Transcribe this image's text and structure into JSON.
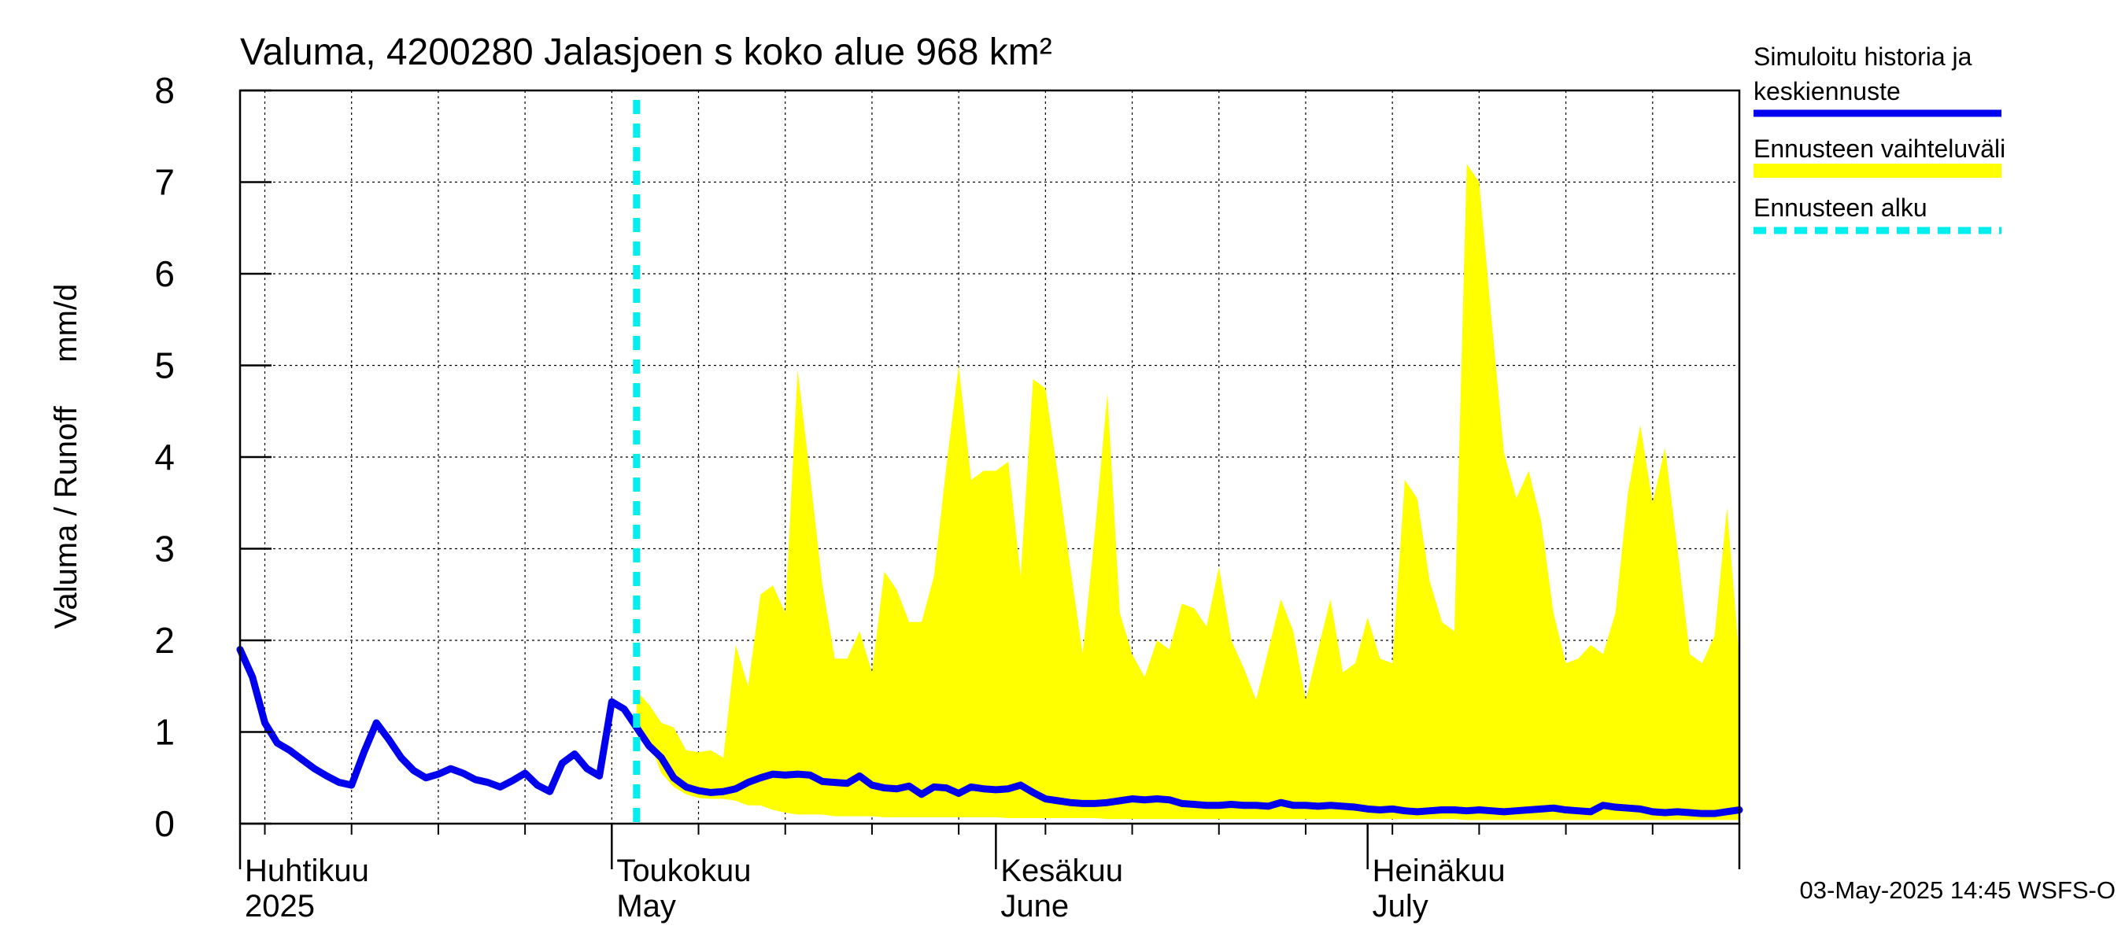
{
  "chart_data": {
    "type": "area",
    "title": "Valuma, 4200280 Jalasjoen s koko alue 968 km²",
    "ylabel": "Valuma / Runoff     mm/d",
    "ylim": [
      0,
      8
    ],
    "yticks": [
      0,
      1,
      2,
      3,
      4,
      5,
      6,
      7,
      8
    ],
    "grid": true,
    "x_axis": {
      "start": "2025-04-01",
      "end": "2025-07-31"
    },
    "month_labels": [
      {
        "date": "2025-04-01",
        "fi": "Huhtikuu",
        "en": "2025"
      },
      {
        "date": "2025-05-01",
        "fi": "Toukokuu",
        "en": "May"
      },
      {
        "date": "2025-06-01",
        "fi": "Kesäkuu",
        "en": "June"
      },
      {
        "date": "2025-07-01",
        "fi": "Heinäkuu",
        "en": "July"
      }
    ],
    "forecast_start": "2025-05-03",
    "legend": [
      {
        "label_line1": "Simuloitu historia ja",
        "label_line2": "keskiennuste",
        "color": "#0000ee",
        "style": "solid"
      },
      {
        "label_line1": "Ennusteen vaihteluväli",
        "label_line2": "",
        "color": "#ffff00",
        "style": "band"
      },
      {
        "label_line1": "Ennusteen alku",
        "label_line2": "",
        "color": "#00eeee",
        "style": "dashed"
      }
    ],
    "legend_position": "right",
    "footer": "03-May-2025 14:45 WSFS-O",
    "series": [
      {
        "name": "Simuloitu historia ja keskiennuste",
        "color": "#0000ee",
        "points": [
          [
            "2025-04-01",
            1.9
          ],
          [
            "2025-04-02",
            1.6
          ],
          [
            "2025-04-03",
            1.1
          ],
          [
            "2025-04-04",
            0.88
          ],
          [
            "2025-04-05",
            0.8
          ],
          [
            "2025-04-06",
            0.7
          ],
          [
            "2025-04-07",
            0.6
          ],
          [
            "2025-04-08",
            0.52
          ],
          [
            "2025-04-09",
            0.45
          ],
          [
            "2025-04-10",
            0.42
          ],
          [
            "2025-04-11",
            0.78
          ],
          [
            "2025-04-12",
            1.1
          ],
          [
            "2025-04-13",
            0.92
          ],
          [
            "2025-04-14",
            0.72
          ],
          [
            "2025-04-15",
            0.58
          ],
          [
            "2025-04-16",
            0.5
          ],
          [
            "2025-04-17",
            0.54
          ],
          [
            "2025-04-18",
            0.6
          ],
          [
            "2025-04-19",
            0.55
          ],
          [
            "2025-04-20",
            0.48
          ],
          [
            "2025-04-21",
            0.45
          ],
          [
            "2025-04-22",
            0.4
          ],
          [
            "2025-04-23",
            0.47
          ],
          [
            "2025-04-24",
            0.55
          ],
          [
            "2025-04-25",
            0.42
          ],
          [
            "2025-04-26",
            0.35
          ],
          [
            "2025-04-27",
            0.66
          ],
          [
            "2025-04-28",
            0.76
          ],
          [
            "2025-04-29",
            0.6
          ],
          [
            "2025-04-30",
            0.52
          ],
          [
            "2025-05-01",
            1.33
          ],
          [
            "2025-05-02",
            1.25
          ],
          [
            "2025-05-03",
            1.05
          ],
          [
            "2025-05-04",
            0.85
          ],
          [
            "2025-05-05",
            0.72
          ],
          [
            "2025-05-06",
            0.5
          ],
          [
            "2025-05-07",
            0.4
          ],
          [
            "2025-05-08",
            0.36
          ],
          [
            "2025-05-09",
            0.34
          ],
          [
            "2025-05-10",
            0.35
          ],
          [
            "2025-05-11",
            0.38
          ],
          [
            "2025-05-12",
            0.45
          ],
          [
            "2025-05-13",
            0.5
          ],
          [
            "2025-05-14",
            0.54
          ],
          [
            "2025-05-15",
            0.53
          ],
          [
            "2025-05-16",
            0.54
          ],
          [
            "2025-05-17",
            0.53
          ],
          [
            "2025-05-18",
            0.46
          ],
          [
            "2025-05-19",
            0.45
          ],
          [
            "2025-05-20",
            0.44
          ],
          [
            "2025-05-21",
            0.52
          ],
          [
            "2025-05-22",
            0.42
          ],
          [
            "2025-05-23",
            0.39
          ],
          [
            "2025-05-24",
            0.38
          ],
          [
            "2025-05-25",
            0.41
          ],
          [
            "2025-05-26",
            0.32
          ],
          [
            "2025-05-27",
            0.4
          ],
          [
            "2025-05-28",
            0.39
          ],
          [
            "2025-05-29",
            0.33
          ],
          [
            "2025-05-30",
            0.4
          ],
          [
            "2025-05-31",
            0.38
          ],
          [
            "2025-06-01",
            0.37
          ],
          [
            "2025-06-02",
            0.38
          ],
          [
            "2025-06-03",
            0.42
          ],
          [
            "2025-06-04",
            0.34
          ],
          [
            "2025-06-05",
            0.27
          ],
          [
            "2025-06-06",
            0.25
          ],
          [
            "2025-06-07",
            0.23
          ],
          [
            "2025-06-08",
            0.22
          ],
          [
            "2025-06-09",
            0.22
          ],
          [
            "2025-06-10",
            0.23
          ],
          [
            "2025-06-11",
            0.25
          ],
          [
            "2025-06-12",
            0.27
          ],
          [
            "2025-06-13",
            0.26
          ],
          [
            "2025-06-14",
            0.27
          ],
          [
            "2025-06-15",
            0.26
          ],
          [
            "2025-06-16",
            0.22
          ],
          [
            "2025-06-17",
            0.21
          ],
          [
            "2025-06-18",
            0.2
          ],
          [
            "2025-06-19",
            0.2
          ],
          [
            "2025-06-20",
            0.21
          ],
          [
            "2025-06-21",
            0.2
          ],
          [
            "2025-06-22",
            0.2
          ],
          [
            "2025-06-23",
            0.19
          ],
          [
            "2025-06-24",
            0.23
          ],
          [
            "2025-06-25",
            0.2
          ],
          [
            "2025-06-26",
            0.2
          ],
          [
            "2025-06-27",
            0.19
          ],
          [
            "2025-06-28",
            0.2
          ],
          [
            "2025-06-29",
            0.19
          ],
          [
            "2025-06-30",
            0.18
          ],
          [
            "2025-07-01",
            0.16
          ],
          [
            "2025-07-02",
            0.15
          ],
          [
            "2025-07-03",
            0.16
          ],
          [
            "2025-07-04",
            0.14
          ],
          [
            "2025-07-05",
            0.13
          ],
          [
            "2025-07-06",
            0.14
          ],
          [
            "2025-07-07",
            0.15
          ],
          [
            "2025-07-08",
            0.15
          ],
          [
            "2025-07-09",
            0.14
          ],
          [
            "2025-07-10",
            0.15
          ],
          [
            "2025-07-11",
            0.14
          ],
          [
            "2025-07-12",
            0.13
          ],
          [
            "2025-07-13",
            0.14
          ],
          [
            "2025-07-14",
            0.15
          ],
          [
            "2025-07-15",
            0.16
          ],
          [
            "2025-07-16",
            0.17
          ],
          [
            "2025-07-17",
            0.15
          ],
          [
            "2025-07-18",
            0.14
          ],
          [
            "2025-07-19",
            0.13
          ],
          [
            "2025-07-20",
            0.2
          ],
          [
            "2025-07-21",
            0.18
          ],
          [
            "2025-07-22",
            0.17
          ],
          [
            "2025-07-23",
            0.16
          ],
          [
            "2025-07-24",
            0.13
          ],
          [
            "2025-07-25",
            0.12
          ],
          [
            "2025-07-26",
            0.13
          ],
          [
            "2025-07-27",
            0.12
          ],
          [
            "2025-07-28",
            0.11
          ],
          [
            "2025-07-29",
            0.11
          ],
          [
            "2025-07-30",
            0.13
          ],
          [
            "2025-07-31",
            0.15
          ]
        ]
      },
      {
        "name": "Ennusteen vaihteluväli",
        "color": "#ffff00",
        "points": [
          [
            "2025-05-03",
            1.45,
            1.1
          ],
          [
            "2025-05-04",
            1.3,
            0.9
          ],
          [
            "2025-05-05",
            1.1,
            0.55
          ],
          [
            "2025-05-06",
            1.05,
            0.4
          ],
          [
            "2025-05-07",
            0.8,
            0.32
          ],
          [
            "2025-05-08",
            0.78,
            0.28
          ],
          [
            "2025-05-09",
            0.8,
            0.27
          ],
          [
            "2025-05-10",
            0.72,
            0.27
          ],
          [
            "2025-05-11",
            1.95,
            0.25
          ],
          [
            "2025-05-12",
            1.5,
            0.2
          ],
          [
            "2025-05-13",
            2.5,
            0.2
          ],
          [
            "2025-05-14",
            2.6,
            0.15
          ],
          [
            "2025-05-15",
            2.3,
            0.12
          ],
          [
            "2025-05-16",
            4.95,
            0.1
          ],
          [
            "2025-05-17",
            3.8,
            0.1
          ],
          [
            "2025-05-18",
            2.6,
            0.1
          ],
          [
            "2025-05-19",
            1.8,
            0.08
          ],
          [
            "2025-05-20",
            1.8,
            0.08
          ],
          [
            "2025-05-21",
            2.1,
            0.08
          ],
          [
            "2025-05-22",
            1.65,
            0.08
          ],
          [
            "2025-05-23",
            2.75,
            0.07
          ],
          [
            "2025-05-24",
            2.55,
            0.07
          ],
          [
            "2025-05-25",
            2.2,
            0.07
          ],
          [
            "2025-05-26",
            2.2,
            0.07
          ],
          [
            "2025-05-27",
            2.7,
            0.07
          ],
          [
            "2025-05-28",
            3.9,
            0.07
          ],
          [
            "2025-05-29",
            5.0,
            0.07
          ],
          [
            "2025-05-30",
            3.75,
            0.07
          ],
          [
            "2025-05-31",
            3.85,
            0.07
          ],
          [
            "2025-06-01",
            3.85,
            0.07
          ],
          [
            "2025-06-02",
            3.95,
            0.06
          ],
          [
            "2025-06-03",
            2.7,
            0.06
          ],
          [
            "2025-06-04",
            4.85,
            0.06
          ],
          [
            "2025-06-05",
            4.75,
            0.06
          ],
          [
            "2025-06-06",
            3.8,
            0.06
          ],
          [
            "2025-06-07",
            2.8,
            0.06
          ],
          [
            "2025-06-08",
            1.85,
            0.06
          ],
          [
            "2025-06-09",
            3.2,
            0.06
          ],
          [
            "2025-06-10",
            4.7,
            0.05
          ],
          [
            "2025-06-11",
            2.3,
            0.05
          ],
          [
            "2025-06-12",
            1.85,
            0.05
          ],
          [
            "2025-06-13",
            1.6,
            0.05
          ],
          [
            "2025-06-14",
            2.0,
            0.05
          ],
          [
            "2025-06-15",
            1.9,
            0.05
          ],
          [
            "2025-06-16",
            2.4,
            0.05
          ],
          [
            "2025-06-17",
            2.35,
            0.05
          ],
          [
            "2025-06-18",
            2.15,
            0.05
          ],
          [
            "2025-06-19",
            2.8,
            0.05
          ],
          [
            "2025-06-20",
            2.0,
            0.05
          ],
          [
            "2025-06-21",
            1.7,
            0.05
          ],
          [
            "2025-06-22",
            1.35,
            0.05
          ],
          [
            "2025-06-23",
            1.9,
            0.05
          ],
          [
            "2025-06-24",
            2.45,
            0.05
          ],
          [
            "2025-06-25",
            2.1,
            0.05
          ],
          [
            "2025-06-26",
            1.35,
            0.05
          ],
          [
            "2025-06-27",
            1.9,
            0.05
          ],
          [
            "2025-06-28",
            2.45,
            0.05
          ],
          [
            "2025-06-29",
            1.65,
            0.05
          ],
          [
            "2025-06-30",
            1.75,
            0.05
          ],
          [
            "2025-07-01",
            2.25,
            0.05
          ],
          [
            "2025-07-02",
            1.8,
            0.05
          ],
          [
            "2025-07-03",
            1.75,
            0.05
          ],
          [
            "2025-07-04",
            3.75,
            0.05
          ],
          [
            "2025-07-05",
            3.55,
            0.05
          ],
          [
            "2025-07-06",
            2.65,
            0.05
          ],
          [
            "2025-07-07",
            2.2,
            0.05
          ],
          [
            "2025-07-08",
            2.1,
            0.05
          ],
          [
            "2025-07-09",
            7.2,
            0.04
          ],
          [
            "2025-07-10",
            7.0,
            0.04
          ],
          [
            "2025-07-11",
            5.5,
            0.04
          ],
          [
            "2025-07-12",
            4.05,
            0.04
          ],
          [
            "2025-07-13",
            3.55,
            0.04
          ],
          [
            "2025-07-14",
            3.85,
            0.04
          ],
          [
            "2025-07-15",
            3.3,
            0.04
          ],
          [
            "2025-07-16",
            2.3,
            0.04
          ],
          [
            "2025-07-17",
            1.75,
            0.04
          ],
          [
            "2025-07-18",
            1.8,
            0.04
          ],
          [
            "2025-07-19",
            1.95,
            0.04
          ],
          [
            "2025-07-20",
            1.85,
            0.04
          ],
          [
            "2025-07-21",
            2.3,
            0.04
          ],
          [
            "2025-07-22",
            3.6,
            0.04
          ],
          [
            "2025-07-23",
            4.35,
            0.04
          ],
          [
            "2025-07-24",
            3.5,
            0.04
          ],
          [
            "2025-07-25",
            4.1,
            0.04
          ],
          [
            "2025-07-26",
            3.0,
            0.04
          ],
          [
            "2025-07-27",
            1.85,
            0.04
          ],
          [
            "2025-07-28",
            1.75,
            0.04
          ],
          [
            "2025-07-29",
            2.05,
            0.04
          ],
          [
            "2025-07-30",
            3.45,
            0.04
          ],
          [
            "2025-07-31",
            1.8,
            0.04
          ]
        ]
      }
    ]
  }
}
